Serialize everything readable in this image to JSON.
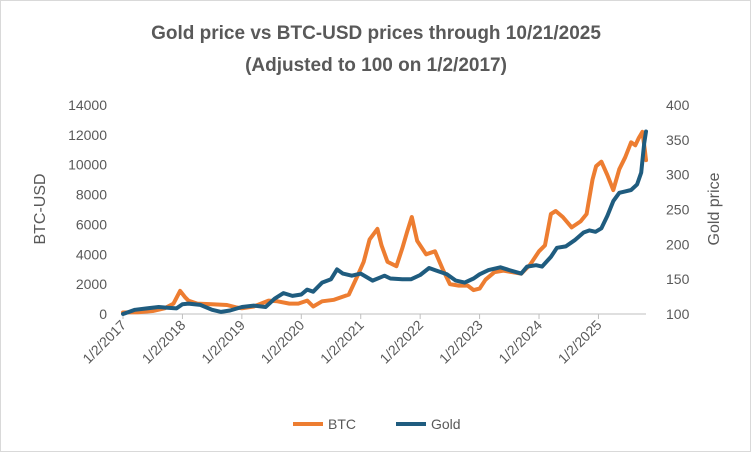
{
  "chart_data": {
    "type": "line",
    "title_line1": "Gold price vs BTC-USD prices through 10/21/2025",
    "title_line2": "(Adjusted to 100 on 1/2/2017)",
    "ylabel_left": "BTC-USD",
    "ylabel_right": "Gold price",
    "ylim_left": [
      0,
      14000
    ],
    "ylim_right": [
      100,
      400
    ],
    "yticks_left": [
      "0",
      "2000",
      "4000",
      "6000",
      "8000",
      "10000",
      "12000",
      "14000"
    ],
    "yticks_right": [
      "100",
      "150",
      "200",
      "250",
      "300",
      "350",
      "400"
    ],
    "xticks": [
      "1/2/2017",
      "1/2/2018",
      "1/2/2019",
      "1/2/2020",
      "1/2/2021",
      "1/2/2022",
      "1/2/2023",
      "1/2/2024",
      "1/2/2025"
    ],
    "x_range": [
      2017.0,
      2025.8
    ],
    "legend_position": "bottom",
    "grid": false,
    "series": [
      {
        "name": "BTC",
        "axis": "left",
        "color": "#ed7d31",
        "x": [
          2017.0,
          2017.25,
          2017.5,
          2017.7,
          2017.85,
          2017.96,
          2018.05,
          2018.1,
          2018.25,
          2018.5,
          2018.75,
          2018.9,
          2019.0,
          2019.2,
          2019.45,
          2019.6,
          2019.8,
          2019.95,
          2020.1,
          2020.2,
          2020.35,
          2020.55,
          2020.8,
          2020.95,
          2021.05,
          2021.15,
          2021.28,
          2021.35,
          2021.45,
          2021.6,
          2021.7,
          2021.78,
          2021.86,
          2021.95,
          2022.1,
          2022.25,
          2022.38,
          2022.5,
          2022.65,
          2022.8,
          2022.9,
          2023.0,
          2023.1,
          2023.25,
          2023.4,
          2023.55,
          2023.7,
          2023.85,
          2024.0,
          2024.1,
          2024.2,
          2024.28,
          2024.4,
          2024.55,
          2024.7,
          2024.8,
          2024.9,
          2024.96,
          2025.05,
          2025.15,
          2025.25,
          2025.35,
          2025.45,
          2025.55,
          2025.62,
          2025.68,
          2025.74,
          2025.78,
          2025.8
        ],
        "values": [
          100,
          120,
          200,
          380,
          700,
          1550,
          1100,
          900,
          700,
          650,
          600,
          450,
          380,
          500,
          900,
          850,
          700,
          700,
          900,
          500,
          850,
          950,
          1300,
          2600,
          3500,
          5000,
          5700,
          4600,
          3500,
          3200,
          4400,
          5500,
          6500,
          4900,
          4000,
          4200,
          3000,
          2000,
          1900,
          1900,
          1600,
          1700,
          2300,
          2800,
          2900,
          2800,
          2700,
          3300,
          4200,
          4600,
          6700,
          6900,
          6500,
          5800,
          6200,
          6700,
          9000,
          9900,
          10200,
          9300,
          8300,
          9700,
          10500,
          11500,
          11300,
          11800,
          12200,
          11000,
          10300
        ]
      },
      {
        "name": "Gold",
        "axis": "right",
        "color": "#1f5c7f",
        "x": [
          2017.0,
          2017.2,
          2017.4,
          2017.6,
          2017.75,
          2017.9,
          2018.0,
          2018.1,
          2018.3,
          2018.5,
          2018.65,
          2018.8,
          2019.0,
          2019.2,
          2019.4,
          2019.55,
          2019.7,
          2019.85,
          2020.0,
          2020.1,
          2020.2,
          2020.35,
          2020.5,
          2020.6,
          2020.7,
          2020.85,
          2021.0,
          2021.2,
          2021.4,
          2021.5,
          2021.7,
          2021.85,
          2022.0,
          2022.15,
          2022.25,
          2022.45,
          2022.6,
          2022.75,
          2022.9,
          2023.0,
          2023.15,
          2023.35,
          2023.5,
          2023.7,
          2023.8,
          2023.95,
          2024.05,
          2024.2,
          2024.3,
          2024.45,
          2024.6,
          2024.75,
          2024.85,
          2024.95,
          2025.05,
          2025.15,
          2025.25,
          2025.35,
          2025.45,
          2025.55,
          2025.65,
          2025.72,
          2025.77,
          2025.8
        ],
        "values": [
          100,
          106,
          108,
          110,
          109,
          108,
          114,
          115,
          113,
          106,
          103,
          105,
          110,
          112,
          110,
          122,
          130,
          126,
          128,
          135,
          132,
          145,
          150,
          164,
          158,
          155,
          158,
          148,
          155,
          151,
          150,
          150,
          156,
          166,
          163,
          157,
          148,
          145,
          151,
          157,
          163,
          167,
          163,
          158,
          168,
          170,
          168,
          182,
          195,
          197,
          206,
          217,
          220,
          218,
          223,
          241,
          262,
          274,
          276,
          278,
          286,
          303,
          345,
          362
        ]
      }
    ]
  }
}
